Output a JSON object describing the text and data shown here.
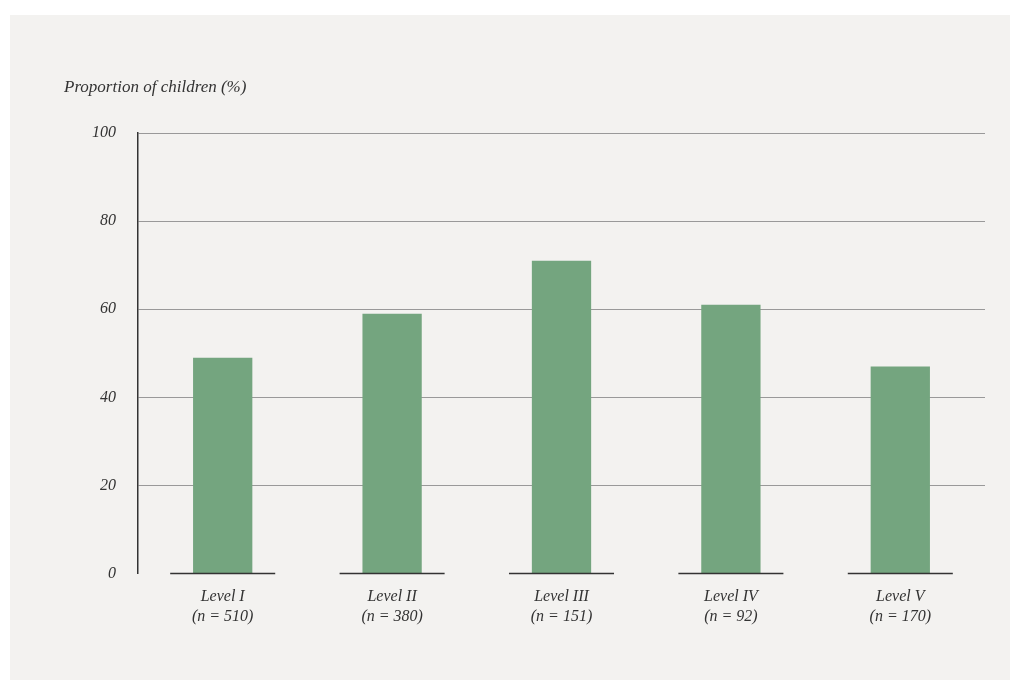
{
  "chart_data": {
    "type": "bar",
    "ylabel": "Proportion of children (%)",
    "categories": [
      "Level I\n(n = 510)",
      "Level II\n(n = 380)",
      "Level III\n(n = 151)",
      "Level IV\n(n = 92)",
      "Level V\n(n = 170)"
    ],
    "values": [
      49,
      59,
      71,
      61,
      47
    ],
    "color": "#74a57f",
    "ylim": [
      0,
      100
    ],
    "yticks": [
      0,
      20,
      40,
      60,
      80,
      100
    ],
    "grid": "y",
    "legend": false
  }
}
